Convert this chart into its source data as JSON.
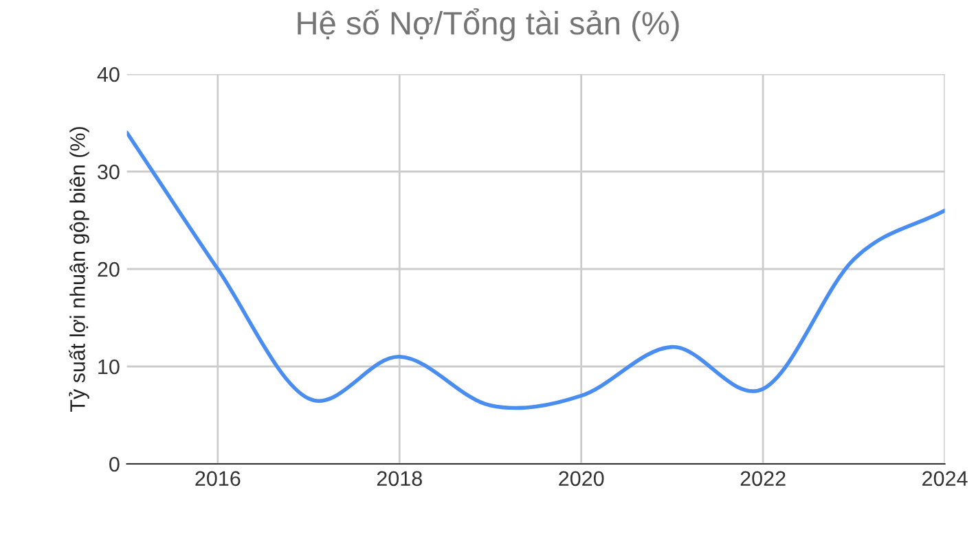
{
  "chart_data": {
    "type": "line",
    "title": "Hệ số Nợ/Tổng tài sản (%)",
    "ylabel": "Tỷ suất lợi nhuận gộp biên (%)",
    "x": [
      2015,
      2016,
      2017,
      2018,
      2019,
      2020,
      2021,
      2022,
      2023,
      2024
    ],
    "series": [
      {
        "color": "#4a8df0",
        "values": [
          34,
          20,
          6.7,
          11,
          6,
          7,
          12,
          7.7,
          21,
          26
        ]
      }
    ],
    "xlim": [
      2015,
      2024
    ],
    "xticks": [
      2016,
      2018,
      2020,
      2022,
      2024
    ],
    "ylim": [
      0,
      40
    ],
    "yticks": [
      0,
      10,
      20,
      30,
      40
    ],
    "grid": true,
    "marker": "none",
    "line_style": "solid"
  }
}
